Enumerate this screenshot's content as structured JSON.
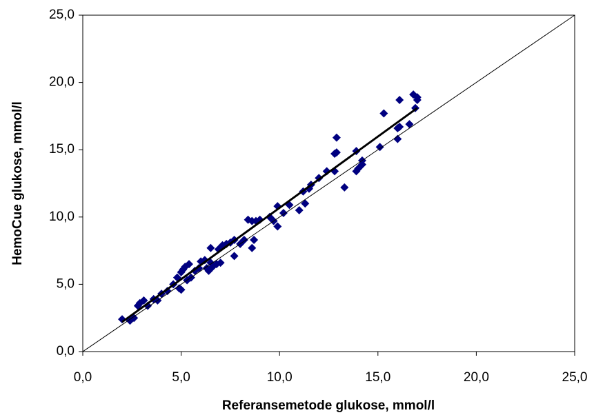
{
  "chart_data": {
    "type": "scatter",
    "x_label": "Referansemetode glukose, mmol/l",
    "y_label": "HemoCue glukose, mmol/l",
    "xlim": [
      0,
      25
    ],
    "ylim": [
      0,
      25
    ],
    "xticks": [
      {
        "value": 0,
        "label": "0,0"
      },
      {
        "value": 5,
        "label": "5,0"
      },
      {
        "value": 10,
        "label": "10,0"
      },
      {
        "value": 15,
        "label": "15,0"
      },
      {
        "value": 20,
        "label": "20,0"
      },
      {
        "value": 25,
        "label": "25,0"
      }
    ],
    "yticks": [
      {
        "value": 0,
        "label": "0,0"
      },
      {
        "value": 5,
        "label": "5,0"
      },
      {
        "value": 10,
        "label": "10,0"
      },
      {
        "value": 15,
        "label": "15,0"
      },
      {
        "value": 20,
        "label": "20,0"
      },
      {
        "value": 25,
        "label": "25,0"
      }
    ],
    "series": [
      {
        "style": "marker",
        "color": "#000080",
        "x": [
          2.0,
          2.4,
          2.6,
          2.8,
          2.9,
          3.1,
          3.3,
          3.6,
          3.8,
          4.0,
          4.3,
          4.6,
          4.8,
          4.9,
          5.0,
          5.0,
          5.1,
          5.2,
          5.4,
          5.3,
          5.5,
          5.7,
          5.9,
          6.0,
          6.2,
          6.3,
          6.4,
          6.5,
          6.5,
          6.6,
          6.8,
          6.9,
          7.0,
          7.1,
          7.3,
          7.5,
          7.7,
          7.7,
          8.0,
          8.2,
          8.4,
          8.6,
          8.6,
          8.8,
          8.7,
          9.0,
          9.5,
          9.7,
          9.9,
          9.9,
          10.2,
          10.5,
          11.0,
          11.2,
          11.3,
          11.5,
          11.6,
          12.0,
          12.4,
          12.8,
          12.8,
          12.9,
          12.9,
          13.3,
          13.9,
          13.9,
          14.0,
          14.2,
          14.2,
          15.1,
          15.3,
          16.0,
          16.0,
          16.1,
          16.1,
          16.6,
          16.8,
          16.9,
          17.0,
          17.0
        ],
        "values": [
          2.4,
          2.3,
          2.5,
          3.4,
          3.6,
          3.8,
          3.4,
          3.9,
          3.8,
          4.3,
          4.5,
          5.0,
          5.5,
          4.7,
          4.6,
          5.9,
          6.1,
          6.3,
          6.5,
          5.3,
          5.5,
          6.0,
          6.2,
          6.7,
          6.8,
          6.2,
          6.0,
          6.6,
          7.7,
          6.3,
          6.5,
          7.6,
          6.6,
          7.9,
          8.0,
          8.1,
          8.3,
          7.1,
          8.0,
          8.3,
          9.8,
          9.7,
          7.7,
          9.7,
          8.3,
          9.8,
          10.0,
          9.7,
          10.8,
          9.3,
          10.3,
          10.9,
          10.5,
          11.9,
          11.0,
          12.1,
          12.4,
          12.9,
          13.4,
          13.4,
          14.7,
          15.9,
          14.8,
          12.2,
          14.9,
          13.4,
          13.6,
          14.2,
          13.9,
          15.2,
          17.7,
          16.6,
          15.8,
          16.7,
          18.7,
          16.9,
          19.1,
          18.1,
          18.7,
          18.9
        ]
      },
      {
        "style": "line",
        "color": "#000000",
        "width": 1,
        "x": [
          0,
          25
        ],
        "values": [
          0,
          25
        ]
      },
      {
        "style": "line",
        "color": "#000000",
        "width": 3,
        "x": [
          2.0,
          17.0
        ],
        "values": [
          2.2,
          18.1
        ]
      }
    ]
  }
}
